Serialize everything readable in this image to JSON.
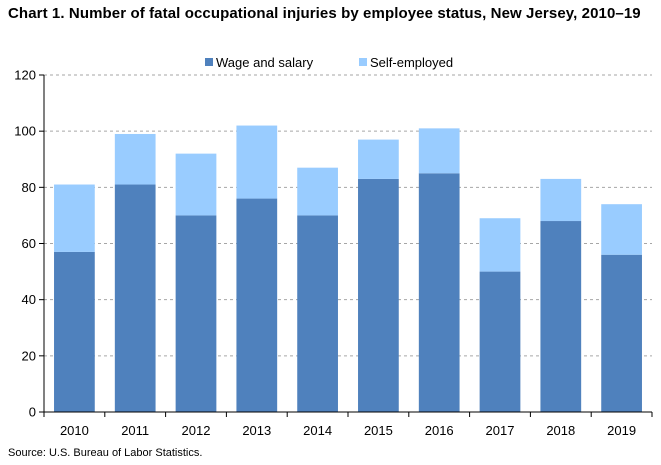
{
  "title": "Chart 1. Number of fatal occupational injuries by employee status, New Jersey, 2010–19",
  "source": "Source: U.S. Bureau of Labor Statistics.",
  "chart_data": {
    "type": "bar",
    "stacked": true,
    "title": "Chart 1. Number of fatal occupational injuries by employee status, New Jersey, 2010–19",
    "xlabel": "",
    "ylabel": "",
    "categories": [
      "2010",
      "2011",
      "2012",
      "2013",
      "2014",
      "2015",
      "2016",
      "2017",
      "2018",
      "2019"
    ],
    "series": [
      {
        "name": "Wage and salary",
        "color": "#4f81bd",
        "values": [
          57,
          81,
          70,
          76,
          70,
          83,
          85,
          50,
          68,
          56
        ]
      },
      {
        "name": "Self-employed",
        "color": "#99ccff",
        "values": [
          24,
          18,
          22,
          26,
          17,
          14,
          16,
          19,
          15,
          18
        ]
      }
    ],
    "ylim": [
      0,
      120
    ],
    "yticks": [
      0,
      20,
      40,
      60,
      80,
      100,
      120
    ],
    "grid": true,
    "legend": "top-center"
  }
}
